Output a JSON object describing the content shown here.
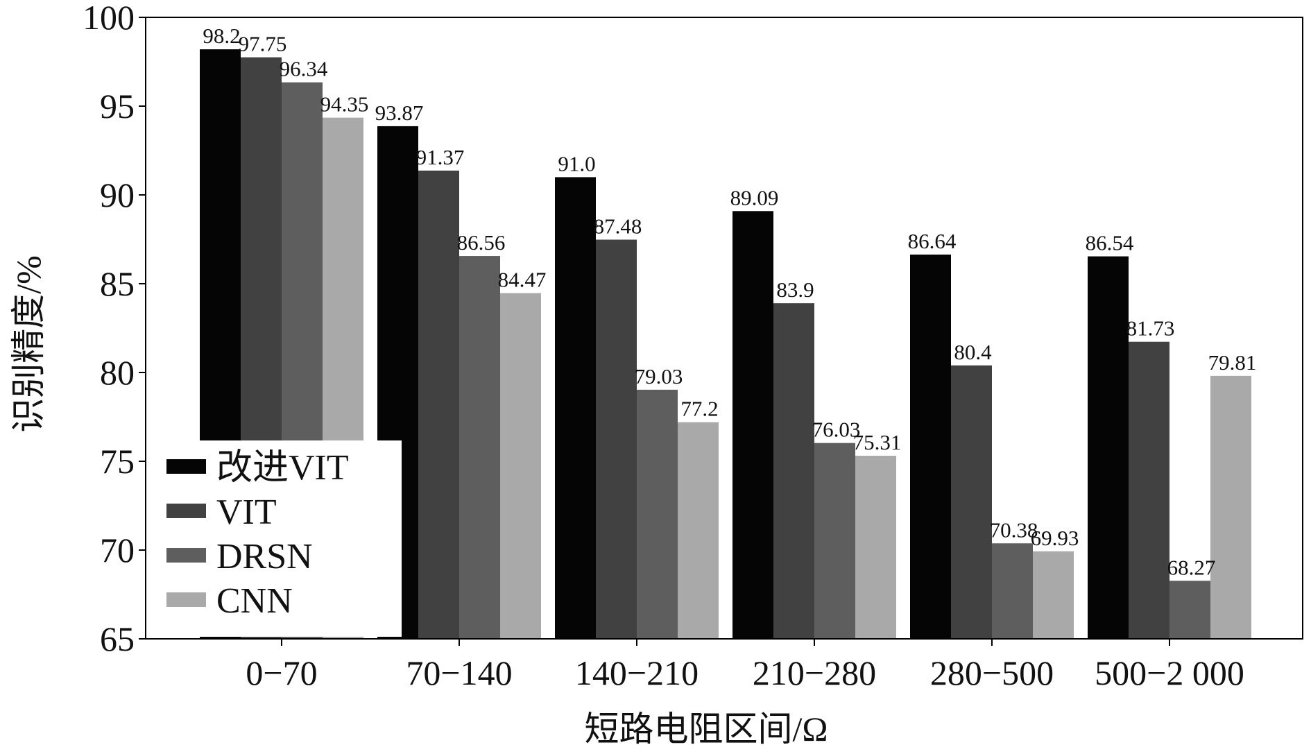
{
  "chart_data": {
    "type": "bar",
    "title": "",
    "xlabel": "短路电阻区间/Ω",
    "ylabel": "识别精度/%",
    "ylim": [
      65,
      100
    ],
    "yticks": [
      "65",
      "70",
      "75",
      "80",
      "85",
      "90",
      "95",
      "100"
    ],
    "categories": [
      "0−70",
      "70−140",
      "140−210",
      "210−280",
      "280−500",
      "500−2 000"
    ],
    "legend_position": "lower-left",
    "series": [
      {
        "name": "改进VIT",
        "color": "#050505",
        "values": [
          98.2,
          93.87,
          91.0,
          89.09,
          86.64,
          86.54
        ],
        "labels": [
          "98.2",
          "93.87",
          "91.0",
          "89.09",
          "86.64",
          "86.54"
        ]
      },
      {
        "name": "VIT",
        "color": "#414141",
        "values": [
          97.75,
          91.37,
          87.48,
          83.9,
          80.4,
          81.73
        ],
        "labels": [
          "97.75",
          "91.37",
          "87.48",
          "83.9",
          "80.4",
          "81.73"
        ]
      },
      {
        "name": "DRSN",
        "color": "#5e5e5e",
        "values": [
          96.34,
          86.56,
          79.03,
          76.03,
          70.38,
          68.27
        ],
        "labels": [
          "96.34",
          "86.56",
          "79.03",
          "76.03",
          "70.38",
          "68.27"
        ]
      },
      {
        "name": "CNN",
        "color": "#a9a9a9",
        "values": [
          94.35,
          84.47,
          77.2,
          75.31,
          69.93,
          79.81
        ],
        "labels": [
          "94.35",
          "84.47",
          "77.2",
          "75.31",
          "69.93",
          "79.81"
        ]
      }
    ]
  }
}
